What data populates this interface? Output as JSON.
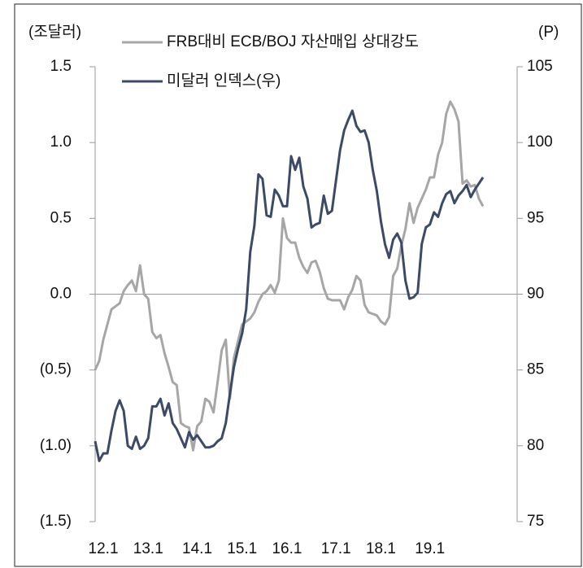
{
  "chart_data": {
    "type": "line",
    "y_label": "(조달러)",
    "y2_label": "(P)",
    "categories": [
      null,
      null,
      "12.1",
      null,
      null,
      null,
      null,
      null,
      null,
      null,
      null,
      null,
      null,
      "13.1",
      null,
      null,
      null,
      null,
      null,
      null,
      null,
      null,
      null,
      null,
      null,
      "14.1",
      null,
      null,
      null,
      null,
      null,
      null,
      null,
      null,
      null,
      null,
      "15.1",
      null,
      null,
      null,
      null,
      null,
      null,
      null,
      null,
      null,
      null,
      "16.1",
      null,
      null,
      null,
      null,
      null,
      null,
      null,
      null,
      null,
      null,
      null,
      "17.1",
      null,
      null,
      null,
      null,
      null,
      null,
      null,
      null,
      null,
      null,
      "18.1",
      null,
      null,
      null,
      null,
      null,
      null,
      null,
      null,
      null,
      null,
      null,
      "19.1",
      null,
      null,
      null,
      null,
      null,
      null,
      null,
      null,
      null,
      null,
      null,
      null,
      null
    ],
    "series": [
      {
        "name": "FRB대비 ECB/BOJ 자산매입 상대강도",
        "color": "#a6a6a6",
        "values": [
          -0.5,
          -0.44,
          -0.3,
          -0.2,
          -0.1,
          -0.08,
          -0.06,
          0.02,
          0.06,
          0.09,
          0.02,
          0.19,
          0.0,
          -0.03,
          -0.25,
          -0.29,
          -0.27,
          -0.39,
          -0.48,
          -0.58,
          -0.6,
          -0.85,
          -0.87,
          -0.88,
          -1.03,
          -0.87,
          -0.84,
          -0.69,
          -0.71,
          -0.78,
          -0.58,
          -0.37,
          -0.3,
          -0.69,
          -0.42,
          -0.31,
          -0.2,
          -0.18,
          -0.16,
          -0.12,
          -0.05,
          0.0,
          0.02,
          0.06,
          0.01,
          0.09,
          0.5,
          0.37,
          0.34,
          0.34,
          0.24,
          0.18,
          0.14,
          0.21,
          0.22,
          0.15,
          0.04,
          -0.03,
          -0.04,
          -0.04,
          -0.04,
          -0.1,
          -0.02,
          0.03,
          0.12,
          0.09,
          -0.07,
          -0.12,
          -0.13,
          -0.14,
          -0.18,
          -0.2,
          -0.15,
          0.12,
          0.17,
          0.32,
          0.43,
          0.6,
          0.47,
          0.57,
          0.63,
          0.69,
          0.77,
          0.77,
          0.92,
          1.0,
          1.19,
          1.27,
          1.22,
          1.14,
          0.73,
          0.75,
          0.71,
          0.72,
          0.63,
          0.58
        ]
      },
      {
        "name": "미달러 인덱스(우)",
        "color": "#3b4a66",
        "axis": "y2",
        "values": [
          80.3,
          79.0,
          79.5,
          79.5,
          81.0,
          82.3,
          83.0,
          82.3,
          80.0,
          79.8,
          80.6,
          79.8,
          80.0,
          80.5,
          82.6,
          82.6,
          83.1,
          82.0,
          82.8,
          81.5,
          81.1,
          80.5,
          79.9,
          80.9,
          80.4,
          80.7,
          80.3,
          79.9,
          79.9,
          80.0,
          80.3,
          80.5,
          81.5,
          83.4,
          85.2,
          86.4,
          87.4,
          89.0,
          92.8,
          94.5,
          97.9,
          97.6,
          95.2,
          95.1,
          96.9,
          96.5,
          95.8,
          95.8,
          99.1,
          98.2,
          99.0,
          97.1,
          96.3,
          94.4,
          94.6,
          94.7,
          96.5,
          95.3,
          95.5,
          97.5,
          99.5,
          100.8,
          101.5,
          102.1,
          101.1,
          100.7,
          100.8,
          100.0,
          98.2,
          96.8,
          94.8,
          93.3,
          92.4,
          93.6,
          94.0,
          93.4,
          90.9,
          89.7,
          89.8,
          90.1,
          93.3,
          94.4,
          94.6,
          95.4,
          95.1,
          96.0,
          96.6,
          96.8,
          96.0,
          96.5,
          96.8,
          97.2,
          96.4,
          96.9,
          97.3,
          97.7
        ]
      }
    ],
    "ylim": [
      -1.5,
      1.5
    ],
    "yticks": [
      1.5,
      {
        "value": 1.0,
        "label": "1.0"
      },
      0.5,
      {
        "value": 0.0,
        "label": "0.0"
      },
      {
        "value": -0.5,
        "label": "(0.5)"
      },
      {
        "value": -1.0,
        "label": "(1.0)"
      },
      {
        "value": -1.5,
        "label": "(1.5)"
      }
    ],
    "y2lim": [
      75,
      105
    ],
    "y2ticks": [
      105,
      100,
      95,
      90,
      85,
      80,
      75
    ],
    "grid": false
  }
}
